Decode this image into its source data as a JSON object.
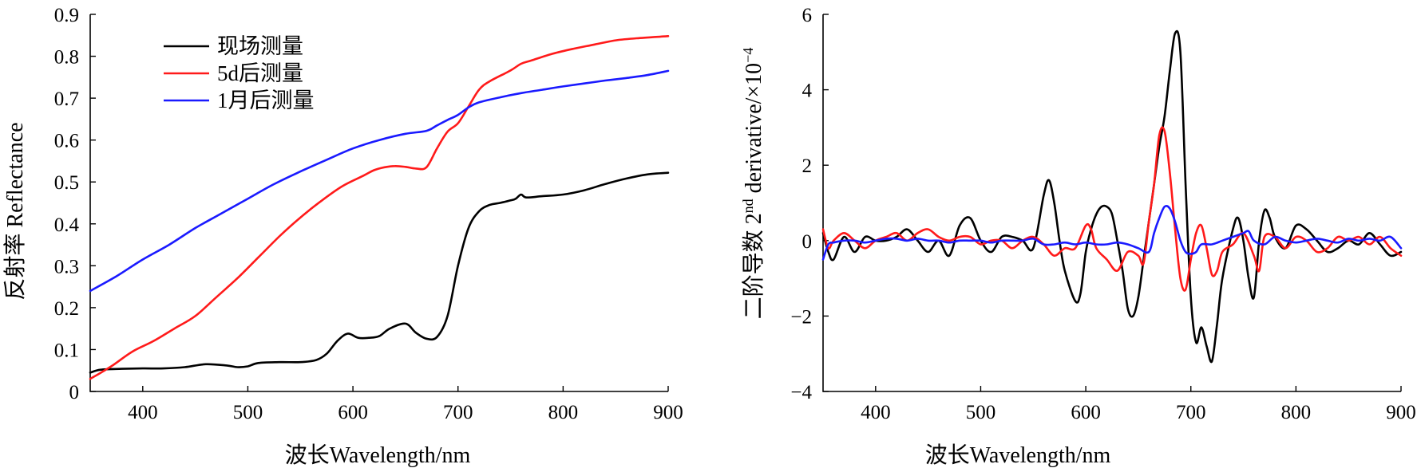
{
  "chart_data": [
    {
      "type": "line",
      "xlabel": "波长Wavelength/nm",
      "ylabel": "反射率 Reflectance",
      "xlim": [
        350,
        900
      ],
      "ylim": [
        0,
        0.9
      ],
      "xticks": [
        "400",
        "500",
        "600",
        "700",
        "800",
        "900"
      ],
      "yticks": [
        "0",
        "0.1",
        "0.2",
        "0.3",
        "0.4",
        "0.5",
        "0.6",
        "0.7",
        "0.8",
        "0.9"
      ],
      "legend_position": "top-left",
      "series": [
        {
          "name": "现场测量",
          "color": "#000000",
          "x": [
            350,
            360,
            380,
            400,
            420,
            440,
            460,
            480,
            490,
            500,
            510,
            530,
            550,
            565,
            575,
            585,
            595,
            605,
            615,
            625,
            635,
            650,
            660,
            670,
            680,
            690,
            700,
            710,
            720,
            730,
            740,
            750,
            755,
            760,
            765,
            780,
            800,
            820,
            840,
            860,
            880,
            900
          ],
          "y": [
            0.045,
            0.052,
            0.054,
            0.055,
            0.055,
            0.058,
            0.065,
            0.062,
            0.058,
            0.06,
            0.068,
            0.07,
            0.07,
            0.075,
            0.09,
            0.12,
            0.138,
            0.128,
            0.128,
            0.132,
            0.15,
            0.162,
            0.14,
            0.126,
            0.13,
            0.18,
            0.3,
            0.39,
            0.43,
            0.445,
            0.45,
            0.456,
            0.46,
            0.47,
            0.463,
            0.466,
            0.47,
            0.48,
            0.495,
            0.508,
            0.518,
            0.522
          ]
        },
        {
          "name": "5d后测量",
          "color": "#ff1a1a",
          "x": [
            350,
            370,
            390,
            410,
            430,
            450,
            470,
            490,
            510,
            530,
            550,
            570,
            590,
            610,
            620,
            630,
            640,
            650,
            660,
            670,
            680,
            690,
            700,
            710,
            720,
            730,
            750,
            760,
            770,
            790,
            810,
            830,
            850,
            870,
            900
          ],
          "y": [
            0.03,
            0.06,
            0.095,
            0.12,
            0.15,
            0.18,
            0.225,
            0.27,
            0.32,
            0.37,
            0.415,
            0.455,
            0.49,
            0.515,
            0.528,
            0.535,
            0.538,
            0.536,
            0.532,
            0.535,
            0.58,
            0.62,
            0.64,
            0.68,
            0.72,
            0.74,
            0.766,
            0.782,
            0.79,
            0.806,
            0.818,
            0.828,
            0.838,
            0.843,
            0.848
          ]
        },
        {
          "name": "1月后测量",
          "color": "#1a1aff",
          "x": [
            350,
            375,
            400,
            425,
            450,
            475,
            500,
            525,
            550,
            575,
            600,
            625,
            650,
            670,
            680,
            690,
            700,
            710,
            720,
            740,
            760,
            780,
            800,
            820,
            840,
            860,
            880,
            900
          ],
          "y": [
            0.24,
            0.275,
            0.315,
            0.35,
            0.39,
            0.425,
            0.46,
            0.495,
            0.525,
            0.553,
            0.58,
            0.6,
            0.615,
            0.622,
            0.635,
            0.648,
            0.66,
            0.678,
            0.69,
            0.702,
            0.712,
            0.72,
            0.728,
            0.735,
            0.742,
            0.748,
            0.755,
            0.765
          ]
        }
      ]
    },
    {
      "type": "line",
      "xlabel": "波长Wavelength/nm",
      "ylabel": "二阶导数 2nd derivative/×10⁻⁴",
      "ylabel_main": "二阶导数 2",
      "ylabel_sup": "nd",
      "ylabel_rest": " derivative/×10",
      "ylabel_exp": "−4",
      "xlim": [
        350,
        900
      ],
      "ylim": [
        -4,
        6
      ],
      "xticks": [
        "400",
        "500",
        "600",
        "700",
        "800",
        "900"
      ],
      "yticks": [
        "−4",
        "−2",
        "0",
        "2",
        "4",
        "6"
      ],
      "series": [
        {
          "name": "现场测量",
          "color": "#000000",
          "x": [
            350,
            355,
            360,
            370,
            380,
            390,
            400,
            410,
            420,
            430,
            440,
            450,
            460,
            470,
            480,
            490,
            500,
            510,
            520,
            530,
            540,
            550,
            560,
            565,
            570,
            575,
            580,
            590,
            595,
            600,
            605,
            610,
            615,
            620,
            625,
            630,
            635,
            640,
            645,
            650,
            655,
            660,
            665,
            670,
            675,
            680,
            685,
            690,
            695,
            700,
            705,
            710,
            715,
            720,
            725,
            730,
            740,
            745,
            750,
            755,
            760,
            765,
            770,
            775,
            780,
            790,
            800,
            810,
            820,
            830,
            840,
            850,
            860,
            870,
            880,
            890,
            900
          ],
          "y": [
            0.2,
            -0.3,
            -0.5,
            0.1,
            -0.3,
            0.1,
            0.0,
            0.0,
            0.1,
            0.3,
            0.0,
            -0.3,
            0.0,
            -0.4,
            0.4,
            0.6,
            0.0,
            -0.3,
            0.1,
            0.1,
            0.0,
            -0.2,
            1.2,
            1.6,
            1.0,
            0.0,
            -0.8,
            -1.6,
            -1.4,
            -0.3,
            0.3,
            0.7,
            0.9,
            0.9,
            0.7,
            0.0,
            -0.8,
            -1.8,
            -2.0,
            -1.5,
            -0.5,
            0.5,
            1.5,
            2.5,
            3.3,
            4.5,
            5.5,
            5.0,
            1.5,
            -1.5,
            -2.7,
            -2.3,
            -2.8,
            -3.2,
            -2.2,
            -1.0,
            0.3,
            0.6,
            0.0,
            -1.0,
            -1.5,
            0.0,
            0.8,
            0.6,
            0.1,
            -0.2,
            0.4,
            0.3,
            0.0,
            -0.3,
            -0.2,
            0.0,
            -0.1,
            0.2,
            -0.1,
            -0.4,
            -0.3
          ]
        },
        {
          "name": "5d后测量",
          "color": "#ff1a1a",
          "x": [
            350,
            355,
            360,
            370,
            380,
            390,
            400,
            410,
            420,
            430,
            440,
            450,
            460,
            470,
            480,
            490,
            500,
            510,
            520,
            530,
            540,
            550,
            560,
            570,
            580,
            590,
            600,
            605,
            610,
            620,
            630,
            640,
            650,
            655,
            660,
            665,
            670,
            675,
            680,
            685,
            690,
            695,
            700,
            705,
            710,
            715,
            720,
            725,
            730,
            740,
            750,
            760,
            765,
            770,
            780,
            790,
            800,
            810,
            820,
            830,
            840,
            850,
            860,
            870,
            880,
            890,
            900
          ],
          "y": [
            0.3,
            -0.2,
            0.0,
            0.2,
            0.0,
            -0.2,
            0.0,
            0.1,
            0.2,
            0.0,
            0.2,
            0.3,
            0.1,
            0.0,
            0.1,
            0.1,
            -0.1,
            0.0,
            0.0,
            -0.2,
            0.0,
            0.1,
            -0.1,
            -0.4,
            -0.2,
            -0.2,
            0.4,
            0.3,
            -0.2,
            -0.5,
            -0.8,
            -0.3,
            -0.4,
            -0.6,
            0.5,
            1.5,
            2.8,
            2.9,
            1.8,
            0.3,
            -1.0,
            -1.3,
            -0.5,
            0.2,
            0.4,
            -0.2,
            -0.9,
            -0.8,
            -0.3,
            -0.1,
            0.2,
            -0.4,
            -0.8,
            0.1,
            0.1,
            -0.2,
            0.1,
            0.0,
            -0.3,
            -0.2,
            0.1,
            0.0,
            0.1,
            -0.1,
            0.1,
            -0.2,
            -0.4
          ]
        },
        {
          "name": "1月后测量",
          "color": "#1a1aff",
          "x": [
            350,
            355,
            360,
            370,
            380,
            390,
            400,
            410,
            420,
            430,
            440,
            450,
            460,
            470,
            480,
            490,
            500,
            510,
            520,
            530,
            540,
            550,
            560,
            570,
            580,
            590,
            600,
            610,
            620,
            630,
            640,
            650,
            660,
            665,
            670,
            675,
            680,
            685,
            690,
            695,
            700,
            705,
            710,
            720,
            730,
            740,
            750,
            755,
            760,
            770,
            780,
            790,
            800,
            810,
            820,
            830,
            840,
            850,
            860,
            870,
            880,
            890,
            900
          ],
          "y": [
            -0.5,
            -0.1,
            -0.05,
            0.0,
            0.0,
            -0.05,
            0.0,
            0.05,
            0.05,
            0.0,
            0.05,
            0.0,
            0.0,
            -0.05,
            0.0,
            0.0,
            0.0,
            -0.05,
            0.0,
            0.0,
            0.0,
            0.05,
            -0.1,
            -0.1,
            -0.05,
            -0.1,
            -0.05,
            -0.1,
            -0.1,
            -0.05,
            -0.1,
            -0.2,
            -0.3,
            0.2,
            0.6,
            0.9,
            0.85,
            0.5,
            0.0,
            -0.3,
            -0.35,
            -0.3,
            -0.1,
            -0.1,
            0.0,
            0.1,
            0.2,
            0.25,
            0.0,
            -0.1,
            0.1,
            0.0,
            -0.05,
            0.0,
            0.05,
            0.0,
            -0.05,
            0.05,
            0.0,
            0.05,
            0.0,
            0.1,
            -0.2
          ]
        }
      ]
    }
  ]
}
